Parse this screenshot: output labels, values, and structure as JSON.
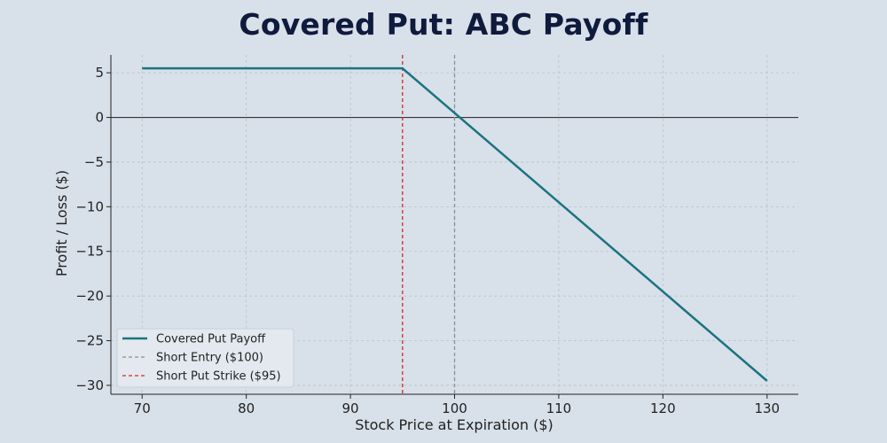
{
  "title": "Covered Put: ABC Payoff",
  "colors": {
    "background": "#d8e0e9",
    "payoff": "#1a7480",
    "entry": "#8a8f96",
    "strike": "#d62728",
    "zero_line": "#333333",
    "grid": "#b7c0cb"
  },
  "chart_data": {
    "type": "line",
    "title": "Covered Put: ABC Payoff",
    "xlabel": "Stock Price at Expiration ($)",
    "ylabel": "Profit / Loss ($)",
    "xlim": [
      67,
      133
    ],
    "ylim": [
      -31,
      7
    ],
    "xticks": [
      70,
      80,
      90,
      100,
      110,
      120,
      130
    ],
    "yticks": [
      5,
      0,
      -5,
      -10,
      -15,
      -20,
      -25,
      -30
    ],
    "ytick_labels": [
      "5",
      "0",
      "−5",
      "−10",
      "−15",
      "−20",
      "−25",
      "−30"
    ],
    "grid": true,
    "legend_position": "lower-left",
    "series": [
      {
        "name": "Covered Put Payoff",
        "style": "solid",
        "x": [
          70,
          95,
          130
        ],
        "y": [
          5.5,
          5.5,
          -29.5
        ]
      }
    ],
    "vlines": [
      {
        "name": "Short Entry ($100)",
        "x": 100,
        "style": "dashed"
      },
      {
        "name": "Short Put Strike ($95)",
        "x": 95,
        "style": "dashed"
      }
    ],
    "hline_zero": true
  },
  "legend": {
    "items": [
      {
        "label": "Covered Put Payoff"
      },
      {
        "label": "Short Entry ($100)"
      },
      {
        "label": "Short Put Strike ($95)"
      }
    ]
  }
}
